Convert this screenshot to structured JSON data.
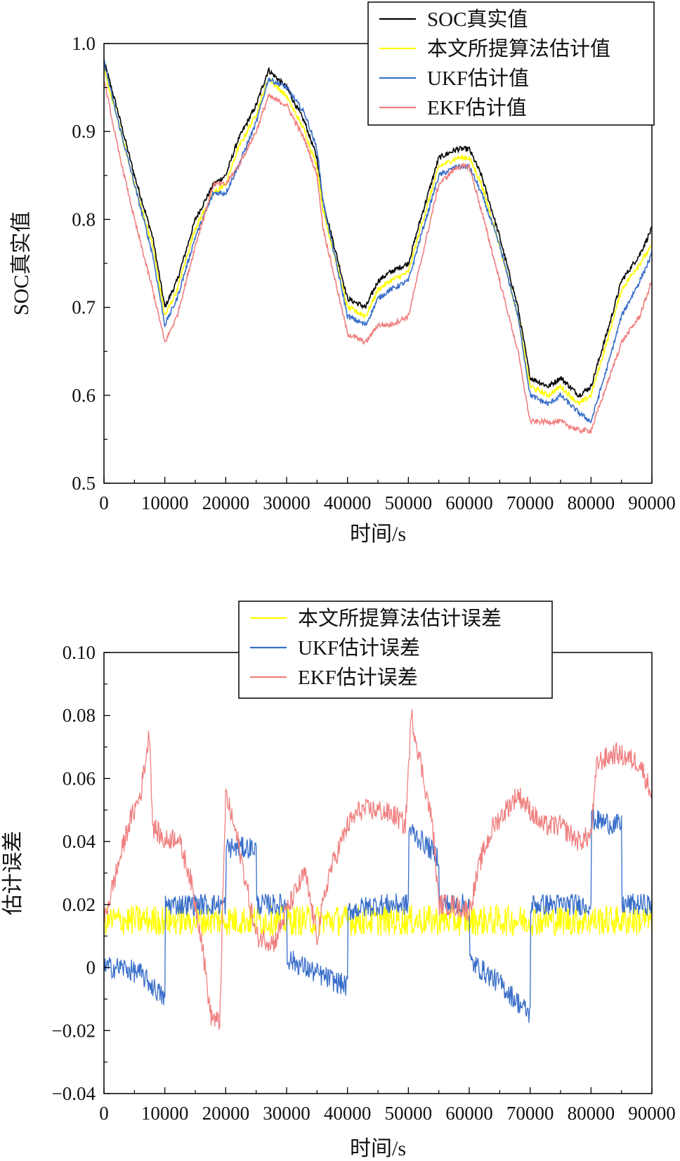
{
  "chart_data": [
    {
      "type": "line",
      "title": "",
      "xlabel": "时间/s",
      "ylabel": "SOC真实值",
      "xlim": [
        0,
        90000
      ],
      "ylim": [
        0.5,
        1.0
      ],
      "xticks": [
        0,
        10000,
        20000,
        30000,
        40000,
        50000,
        60000,
        70000,
        80000,
        90000
      ],
      "xtick_labels": [
        "0",
        "10000",
        "20000",
        "30000",
        "40000",
        "50000",
        "60000",
        "70000",
        "80000",
        "90000"
      ],
      "yticks": [
        0.5,
        0.6,
        0.7,
        0.8,
        0.9,
        1.0
      ],
      "ytick_labels": [
        "0.5",
        "0.6",
        "0.7",
        "0.8",
        "0.9",
        "1.0"
      ],
      "grid": false,
      "legend_position": "top-right",
      "x": [
        0,
        2000,
        5000,
        8000,
        10000,
        12000,
        15000,
        18000,
        20000,
        22000,
        25000,
        27000,
        30000,
        33000,
        35000,
        36000,
        40000,
        43000,
        45000,
        47000,
        50000,
        52000,
        55000,
        58000,
        60000,
        62000,
        65000,
        68000,
        70000,
        73000,
        75000,
        78000,
        80000,
        83000,
        85000,
        88000,
        90000
      ],
      "series": [
        {
          "name": "SOC真实值",
          "color": "#000000",
          "values": [
            0.98,
            0.93,
            0.85,
            0.78,
            0.7,
            0.73,
            0.8,
            0.84,
            0.85,
            0.89,
            0.93,
            0.97,
            0.95,
            0.91,
            0.87,
            0.82,
            0.71,
            0.7,
            0.73,
            0.74,
            0.75,
            0.8,
            0.87,
            0.88,
            0.88,
            0.85,
            0.78,
            0.7,
            0.62,
            0.61,
            0.62,
            0.6,
            0.61,
            0.68,
            0.73,
            0.76,
            0.79
          ]
        },
        {
          "name": "本文所提算法估计值",
          "color": "#ffff00",
          "values": [
            0.97,
            0.92,
            0.84,
            0.77,
            0.69,
            0.72,
            0.79,
            0.83,
            0.84,
            0.88,
            0.92,
            0.96,
            0.94,
            0.9,
            0.86,
            0.81,
            0.7,
            0.69,
            0.72,
            0.73,
            0.74,
            0.79,
            0.86,
            0.87,
            0.87,
            0.84,
            0.77,
            0.69,
            0.61,
            0.6,
            0.61,
            0.59,
            0.6,
            0.67,
            0.72,
            0.75,
            0.77
          ]
        },
        {
          "name": "UKF估计值",
          "color": "#3a6fc9",
          "values": [
            0.98,
            0.92,
            0.84,
            0.76,
            0.68,
            0.71,
            0.78,
            0.83,
            0.83,
            0.86,
            0.91,
            0.96,
            0.95,
            0.92,
            0.88,
            0.82,
            0.69,
            0.68,
            0.71,
            0.72,
            0.73,
            0.78,
            0.85,
            0.86,
            0.86,
            0.83,
            0.77,
            0.69,
            0.6,
            0.59,
            0.6,
            0.58,
            0.57,
            0.64,
            0.69,
            0.73,
            0.76
          ]
        },
        {
          "name": "EKF估计值",
          "color": "#f08080",
          "values": [
            0.96,
            0.89,
            0.8,
            0.72,
            0.66,
            0.69,
            0.77,
            0.84,
            0.84,
            0.86,
            0.9,
            0.94,
            0.93,
            0.89,
            0.85,
            0.79,
            0.67,
            0.66,
            0.68,
            0.68,
            0.69,
            0.75,
            0.84,
            0.86,
            0.86,
            0.81,
            0.73,
            0.65,
            0.57,
            0.57,
            0.57,
            0.56,
            0.56,
            0.62,
            0.66,
            0.69,
            0.73
          ]
        }
      ]
    },
    {
      "type": "line",
      "title": "",
      "xlabel": "时间/s",
      "ylabel": "估计误差",
      "xlim": [
        0,
        90000
      ],
      "ylim": [
        -0.04,
        0.1
      ],
      "xticks": [
        0,
        10000,
        20000,
        30000,
        40000,
        50000,
        60000,
        70000,
        80000,
        90000
      ],
      "xtick_labels": [
        "0",
        "10000",
        "20000",
        "30000",
        "40000",
        "50000",
        "60000",
        "70000",
        "80000",
        "90000"
      ],
      "yticks": [
        -0.04,
        -0.02,
        0,
        0.02,
        0.04,
        0.06,
        0.08,
        0.1
      ],
      "ytick_labels": [
        "−0.04",
        "−0.02",
        "0",
        "0.02",
        "0.04",
        "0.06",
        "0.08",
        "0.10"
      ],
      "grid": false,
      "legend_position": "top-center",
      "series": [
        {
          "name": "本文所提算法估计误差",
          "color": "#ffff00",
          "x": [
            0,
            10000,
            20000,
            30000,
            40000,
            50000,
            60000,
            70000,
            80000,
            90000
          ],
          "values": [
            0.015,
            0.015,
            0.015,
            0.015,
            0.015,
            0.015,
            0.015,
            0.015,
            0.015,
            0.015
          ]
        },
        {
          "name": "UKF估计误差",
          "color": "#3a6fc9",
          "x": [
            0,
            3000,
            6000,
            9000,
            10000,
            10100,
            15000,
            20000,
            20100,
            25000,
            25100,
            30000,
            30100,
            35000,
            40000,
            40100,
            45000,
            50000,
            50100,
            55000,
            55100,
            60000,
            60100,
            65000,
            70000,
            70100,
            75000,
            80000,
            80100,
            85000,
            85100,
            90000
          ],
          "values": [
            0.0,
            0.0,
            -0.002,
            -0.008,
            -0.01,
            0.02,
            0.02,
            0.02,
            0.038,
            0.038,
            0.02,
            0.02,
            0.003,
            -0.002,
            -0.006,
            0.018,
            0.02,
            0.02,
            0.044,
            0.035,
            0.02,
            0.02,
            0.002,
            -0.005,
            -0.015,
            0.02,
            0.02,
            0.02,
            0.047,
            0.045,
            0.02,
            0.02
          ]
        },
        {
          "name": "EKF估计误差",
          "color": "#f08080",
          "x": [
            0,
            2000,
            4000,
            6000,
            7500,
            8000,
            10000,
            12000,
            14000,
            16000,
            17500,
            19000,
            20000,
            22000,
            25000,
            28000,
            30000,
            33000,
            35000,
            37000,
            40000,
            42000,
            45000,
            48000,
            49500,
            50500,
            52000,
            54000,
            55000,
            57000,
            60000,
            62000,
            64000,
            66000,
            68000,
            70000,
            72000,
            75000,
            78000,
            80000,
            81000,
            84000,
            88000,
            90000
          ],
          "values": [
            0.015,
            0.03,
            0.045,
            0.055,
            0.075,
            0.045,
            0.04,
            0.042,
            0.03,
            0.01,
            -0.015,
            -0.018,
            0.055,
            0.04,
            0.01,
            0.008,
            0.018,
            0.03,
            0.01,
            0.03,
            0.045,
            0.05,
            0.05,
            0.048,
            0.045,
            0.08,
            0.065,
            0.045,
            0.02,
            0.02,
            0.018,
            0.035,
            0.045,
            0.05,
            0.055,
            0.05,
            0.045,
            0.045,
            0.04,
            0.042,
            0.065,
            0.068,
            0.065,
            0.055
          ]
        }
      ]
    }
  ]
}
